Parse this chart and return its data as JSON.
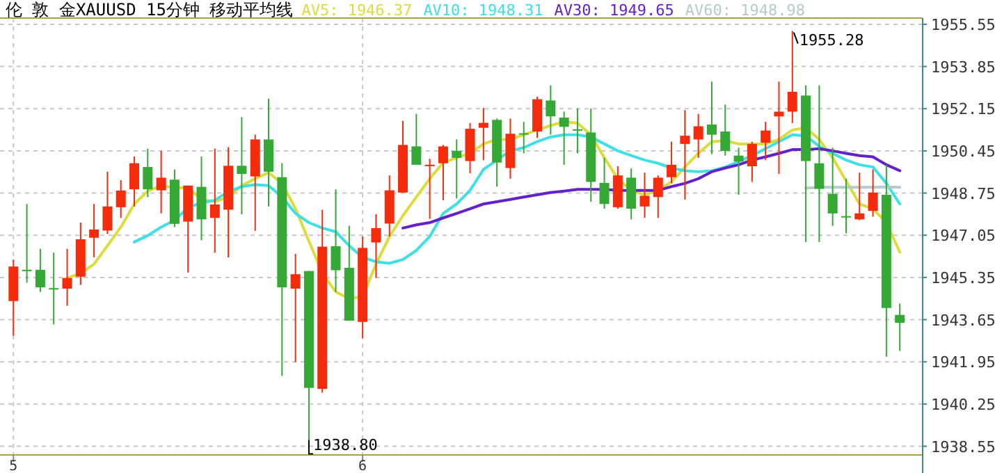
{
  "chart_data": {
    "type": "candlestick",
    "title": "伦 敦 金XAUUSD 15分钟 移动平均线",
    "categories": [
      "5",
      null,
      null,
      null,
      null,
      null,
      null,
      null,
      null,
      null,
      null,
      null,
      null,
      null,
      null,
      null,
      null,
      null,
      null,
      null,
      null,
      null,
      null,
      null,
      null,
      null,
      "6",
      null,
      null,
      null,
      null,
      null,
      null,
      null,
      null,
      null,
      null,
      null,
      null,
      null,
      null,
      null,
      null,
      null,
      null,
      null,
      null,
      null,
      null,
      null,
      null,
      null,
      null,
      null,
      null,
      null,
      null,
      null,
      null,
      null,
      null,
      null,
      null,
      null,
      null,
      null,
      null
    ],
    "ohlc": [
      [
        1944.4,
        1946.07,
        1943.0,
        1945.79
      ],
      [
        1945.66,
        1948.31,
        1945.14,
        1945.66
      ],
      [
        1945.66,
        1946.5,
        1944.77,
        1944.95
      ],
      [
        1944.92,
        1946.35,
        1943.46,
        1944.92
      ],
      [
        1944.9,
        1946.5,
        1944.21,
        1945.33
      ],
      [
        1945.38,
        1947.56,
        1945.05,
        1946.89
      ],
      [
        1946.95,
        1948.31,
        1946.16,
        1947.28
      ],
      [
        1947.24,
        1949.61,
        1947.1,
        1948.21
      ],
      [
        1948.18,
        1949.27,
        1947.75,
        1948.85
      ],
      [
        1948.9,
        1950.22,
        1948.21,
        1949.95
      ],
      [
        1949.8,
        1950.54,
        1948.59,
        1948.9
      ],
      [
        1948.86,
        1950.45,
        1947.93,
        1949.37
      ],
      [
        1949.29,
        1949.7,
        1947.38,
        1947.51
      ],
      [
        1947.6,
        1949.05,
        1945.55,
        1949.05
      ],
      [
        1949.0,
        1950.22,
        1946.85,
        1947.69
      ],
      [
        1947.75,
        1950.54,
        1946.35,
        1948.29
      ],
      [
        1948.08,
        1950.6,
        1946.16,
        1949.85
      ],
      [
        1949.85,
        1951.81,
        1947.9,
        1949.52
      ],
      [
        1949.42,
        1951.1,
        1947.23,
        1950.91
      ],
      [
        1950.91,
        1952.55,
        1948.21,
        1949.61
      ],
      [
        1949.39,
        1949.95,
        1941.38,
        1944.95
      ],
      [
        1944.9,
        1946.3,
        1941.94,
        1945.48
      ],
      [
        1945.61,
        1945.61,
        1938.8,
        1940.9
      ],
      [
        1940.86,
        1948.08,
        1940.71,
        1946.59
      ],
      [
        1946.61,
        1948.9,
        1944.77,
        1945.64
      ],
      [
        1945.74,
        1947.43,
        1943.61,
        1943.61
      ],
      [
        1943.56,
        1947.0,
        1942.91,
        1946.54
      ],
      [
        1946.76,
        1947.9,
        1945.33,
        1947.34
      ],
      [
        1947.52,
        1949.46,
        1947.0,
        1948.86
      ],
      [
        1948.77,
        1951.66,
        1948.77,
        1950.69
      ],
      [
        1950.63,
        1951.94,
        1949.89,
        1949.89
      ],
      [
        1949.85,
        1950.13,
        1947.71,
        1949.89
      ],
      [
        1949.95,
        1950.69,
        1948.46,
        1950.63
      ],
      [
        1950.45,
        1950.91,
        1948.53,
        1950.17
      ],
      [
        1950.04,
        1951.57,
        1949.55,
        1951.34
      ],
      [
        1951.38,
        1952.18,
        1950.08,
        1951.58
      ],
      [
        1951.7,
        1951.75,
        1949.01,
        1949.98
      ],
      [
        1949.76,
        1951.75,
        1949.33,
        1951.14
      ],
      [
        1951.16,
        1951.62,
        1950.35,
        1951.14
      ],
      [
        1951.23,
        1952.63,
        1950.97,
        1952.53
      ],
      [
        1952.48,
        1953.09,
        1951.1,
        1951.84
      ],
      [
        1951.79,
        1952.03,
        1949.89,
        1951.42
      ],
      [
        1951.32,
        1952.16,
        1950.35,
        1951.32
      ],
      [
        1951.19,
        1952.16,
        1948.4,
        1949.2
      ],
      [
        1949.16,
        1950.17,
        1948.12,
        1948.31
      ],
      [
        1948.18,
        1949.83,
        1948.12,
        1949.46
      ],
      [
        1949.37,
        1949.74,
        1947.69,
        1948.12
      ],
      [
        1948.21,
        1949.57,
        1947.75,
        1948.64
      ],
      [
        1948.59,
        1949.46,
        1947.75,
        1949.37
      ],
      [
        1949.39,
        1950.82,
        1949.14,
        1949.89
      ],
      [
        1950.73,
        1952.09,
        1948.49,
        1951.06
      ],
      [
        1950.91,
        1951.94,
        1950.17,
        1951.44
      ],
      [
        1951.51,
        1953.24,
        1950.32,
        1951.1
      ],
      [
        1951.23,
        1952.31,
        1950.26,
        1950.45
      ],
      [
        1950.26,
        1950.58,
        1948.68,
        1950.02
      ],
      [
        1949.83,
        1950.82,
        1949.2,
        1950.73
      ],
      [
        1950.78,
        1951.62,
        1950.08,
        1951.27
      ],
      [
        1951.84,
        1953.24,
        1949.52,
        1952.03
      ],
      [
        1952.03,
        1955.28,
        1951.57,
        1952.83
      ],
      [
        1952.68,
        1953.09,
        1946.78,
        1950.04
      ],
      [
        1949.95,
        1953.09,
        1946.78,
        1948.92
      ],
      [
        1948.72,
        1950.58,
        1947.43,
        1947.93
      ],
      [
        1947.82,
        1949.33,
        1947.13,
        1947.82
      ],
      [
        1947.69,
        1949.57,
        1947.66,
        1947.93
      ],
      [
        1948.03,
        1949.7,
        1947.8,
        1948.77
      ],
      [
        1948.68,
        1949.89,
        1942.16,
        1944.12
      ],
      [
        1943.84,
        1944.3,
        1942.39,
        1943.52
      ]
    ],
    "colors": [
      "#f42c0c",
      "#36a836",
      "#36a836",
      "#36a836",
      "#f42c0c",
      "#f42c0c",
      "#f42c0c",
      "#f42c0c",
      "#f42c0c",
      "#f42c0c",
      "#36a836",
      "#f42c0c",
      "#36a836",
      "#f42c0c",
      "#36a836",
      "#f42c0c",
      "#f42c0c",
      "#36a836",
      "#f42c0c",
      "#36a836",
      "#36a836",
      "#f42c0c",
      "#36a836",
      "#f42c0c",
      "#36a836",
      "#36a836",
      "#f42c0c",
      "#f42c0c",
      "#f42c0c",
      "#f42c0c",
      "#36a836",
      "#f42c0c",
      "#f42c0c",
      "#36a836",
      "#f42c0c",
      "#f42c0c",
      "#36a836",
      "#f42c0c",
      "#36a836",
      "#f42c0c",
      "#36a836",
      "#36a836",
      "#36a836",
      "#36a836",
      "#36a836",
      "#f42c0c",
      "#36a836",
      "#f42c0c",
      "#f42c0c",
      "#f42c0c",
      "#f42c0c",
      "#f42c0c",
      "#36a836",
      "#36a836",
      "#36a836",
      "#f42c0c",
      "#f42c0c",
      "#f42c0c",
      "#f42c0c",
      "#36a836",
      "#36a836",
      "#36a836",
      "#36a836",
      "#f42c0c",
      "#f42c0c",
      "#36a836",
      "#36a836"
    ],
    "series": [
      {
        "type": "line",
        "name": "AV5: 1946.37",
        "color": "#dcdc3c",
        "values": [
          null,
          null,
          null,
          null,
          1945.33,
          1945.51,
          1945.89,
          1946.63,
          1947.38,
          1948.31,
          1948.83,
          1949.05,
          1948.96,
          1948.96,
          1948.49,
          1948.4,
          1948.59,
          1949.05,
          1949.33,
          1949.57,
          1949.14,
          1948.12,
          1946.82,
          1945.51,
          1944.77,
          1944.49,
          1944.58,
          1945.89,
          1947.0,
          1947.84,
          1948.59,
          1949.33,
          1949.98,
          1950.17,
          1950.35,
          1950.73,
          1950.91,
          1950.91,
          1951.1,
          1951.29,
          1951.47,
          1951.62,
          1951.57,
          1951.1,
          1950.17,
          1949.33,
          1948.86,
          1948.68,
          1948.86,
          1949.2,
          1949.8,
          1950.35,
          1950.82,
          1950.86,
          1950.73,
          1950.73,
          1950.73,
          1950.91,
          1951.29,
          1951.38,
          1950.91,
          1950.17,
          1949.24,
          1948.31,
          1948.12,
          1947.56,
          1946.37
        ]
      },
      {
        "type": "line",
        "name": "AV10: 1948.31",
        "color": "#3ee0e6",
        "values": [
          null,
          null,
          null,
          null,
          null,
          null,
          null,
          null,
          null,
          1946.78,
          1947.04,
          1947.38,
          1947.66,
          1948.16,
          1948.36,
          1948.46,
          1948.81,
          1949.01,
          1949.09,
          1949.05,
          1948.59,
          1947.93,
          1947.56,
          1947.34,
          1947.19,
          1946.63,
          1946.16,
          1945.98,
          1945.92,
          1946.07,
          1946.44,
          1947.0,
          1947.93,
          1948.31,
          1948.86,
          1949.7,
          1950.08,
          1950.45,
          1950.58,
          1950.82,
          1951.01,
          1951.1,
          1951.1,
          1951.01,
          1950.73,
          1950.45,
          1950.26,
          1950.08,
          1949.95,
          1949.76,
          1949.65,
          1949.61,
          1949.65,
          1949.8,
          1950.02,
          1950.26,
          1950.54,
          1950.82,
          1951.1,
          1951.06,
          1950.63,
          1950.35,
          1950.08,
          1949.89,
          1949.8,
          1949.14,
          1948.31
        ]
      },
      {
        "type": "line",
        "name": "AV30: 1949.65",
        "color": "#6420cc",
        "values": [
          null,
          null,
          null,
          null,
          null,
          null,
          null,
          null,
          null,
          null,
          null,
          null,
          null,
          null,
          null,
          null,
          null,
          null,
          null,
          null,
          null,
          null,
          null,
          null,
          null,
          null,
          null,
          null,
          null,
          1947.34,
          1947.47,
          1947.56,
          1947.75,
          1947.93,
          1948.12,
          1948.31,
          1948.4,
          1948.49,
          1948.59,
          1948.68,
          1948.77,
          1948.83,
          1948.9,
          1948.9,
          1948.9,
          1948.86,
          1948.86,
          1948.86,
          1948.86,
          1949.01,
          1949.14,
          1949.33,
          1949.61,
          1949.76,
          1949.89,
          1950.08,
          1950.21,
          1950.35,
          1950.5,
          1950.5,
          1950.54,
          1950.45,
          1950.35,
          1950.26,
          1950.21,
          1949.89,
          1949.65
        ]
      },
      {
        "type": "line",
        "name": "AV60: 1948.98",
        "color": "#b4cacc",
        "values": [
          null,
          null,
          null,
          null,
          null,
          null,
          null,
          null,
          null,
          null,
          null,
          null,
          null,
          null,
          null,
          null,
          null,
          null,
          null,
          null,
          null,
          null,
          null,
          null,
          null,
          null,
          null,
          null,
          null,
          null,
          null,
          null,
          null,
          null,
          null,
          null,
          null,
          null,
          null,
          null,
          null,
          null,
          null,
          null,
          null,
          null,
          null,
          null,
          null,
          null,
          null,
          null,
          null,
          null,
          null,
          null,
          null,
          null,
          null,
          1948.95,
          1948.98,
          1948.98,
          1948.98,
          1948.98,
          1948.98,
          1949.0,
          1948.98
        ]
      }
    ],
    "ylim": [
      1938.2,
      1955.8
    ],
    "yticks": [
      1938.55,
      1940.25,
      1941.95,
      1943.65,
      1945.35,
      1947.05,
      1948.75,
      1950.45,
      1952.15,
      1953.85,
      1955.55
    ],
    "grid": true,
    "legend": "top",
    "annotations": [
      "1955.28",
      "1938.80"
    ]
  }
}
